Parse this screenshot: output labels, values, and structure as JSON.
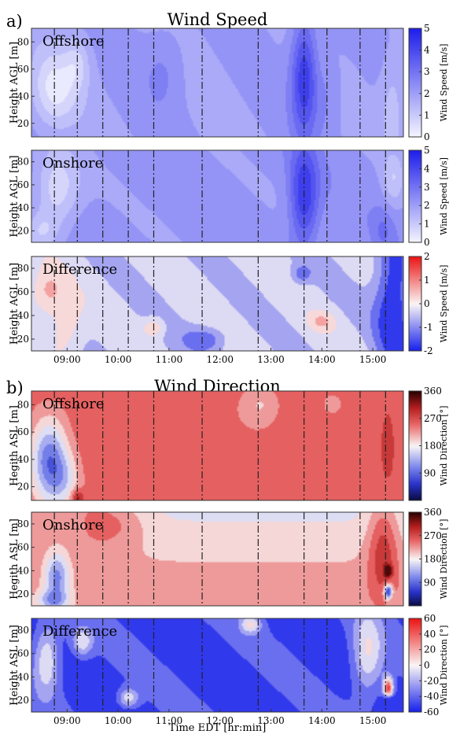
{
  "chart_data": {
    "type": "heatmap",
    "x_ticks": [
      "09:00",
      "10:00",
      "11:00",
      "12:00",
      "13:00",
      "14:00",
      "15:00"
    ],
    "x_tick_hours": [
      9,
      10,
      11,
      12,
      13,
      14,
      15
    ],
    "x_range_hours": [
      8.3,
      15.6
    ],
    "xlabel": "Time EDT [hr:min]",
    "vertical_lines_hours": [
      8.75,
      9.2,
      9.7,
      10.2,
      10.7,
      11.65,
      12.75,
      13.65,
      14.1,
      14.75,
      15.25
    ],
    "sections": [
      {
        "letter": "a)",
        "title": "Wind Speed",
        "panels": [
          {
            "label": "Offshore",
            "ylabel": "Height AGL [m]",
            "yticks": [
              20,
              40,
              60,
              80
            ],
            "ylim": [
              10,
              90
            ],
            "cbar_label": "Wind Speed [m/s]",
            "cbar_ticks": [
              0,
              1,
              2,
              3,
              4,
              5
            ],
            "cbar_range": [
              0,
              5
            ],
            "colormap": "white-blue",
            "field": "ws_off"
          },
          {
            "label": "Onshore",
            "ylabel": "Height AGL [m]",
            "yticks": [
              20,
              40,
              60,
              80
            ],
            "ylim": [
              10,
              90
            ],
            "cbar_label": "Wind Speed [m/s]",
            "cbar_ticks": [
              0,
              1,
              2,
              3,
              4,
              5
            ],
            "cbar_range": [
              0,
              5
            ],
            "colormap": "white-blue",
            "field": "ws_on"
          },
          {
            "label": "Difference",
            "ylabel": "Height AGL [m]",
            "yticks": [
              20,
              40,
              60,
              80
            ],
            "ylim": [
              10,
              90
            ],
            "cbar_label": "Wind Speed [m/s]",
            "cbar_ticks": [
              -2,
              -1,
              0,
              1,
              2
            ],
            "cbar_range": [
              -2,
              2
            ],
            "colormap": "blue-white-red",
            "field": "ws_diff"
          }
        ]
      },
      {
        "letter": "b)",
        "title": "Wind Direction",
        "panels": [
          {
            "label": "Offshore",
            "ylabel": "Hegith ASL [m]",
            "yticks": [
              20,
              40,
              60,
              80
            ],
            "ylim": [
              10,
              90
            ],
            "cbar_label": "Wind Direction [°]",
            "cbar_ticks": [
              90,
              180,
              270,
              360
            ],
            "cbar_range": [
              0,
              360
            ],
            "colormap": "direction",
            "field": "wd_off"
          },
          {
            "label": "Onshore",
            "ylabel": "Hegith ASL [m]",
            "yticks": [
              20,
              40,
              60,
              80
            ],
            "ylim": [
              10,
              90
            ],
            "cbar_label": "Wind Direction [°]",
            "cbar_ticks": [
              90,
              180,
              270,
              360
            ],
            "cbar_range": [
              0,
              360
            ],
            "colormap": "direction",
            "field": "wd_on"
          },
          {
            "label": "Difference",
            "ylabel": "Height ASL [m]",
            "yticks": [
              20,
              40,
              60,
              80
            ],
            "ylim": [
              10,
              90
            ],
            "cbar_label": "Wind Direction [°]",
            "cbar_ticks": [
              -60,
              -40,
              -20,
              0,
              20,
              40,
              60
            ],
            "cbar_range": [
              -60,
              60
            ],
            "colormap": "blue-white-red",
            "field": "wd_diff"
          }
        ]
      }
    ]
  }
}
